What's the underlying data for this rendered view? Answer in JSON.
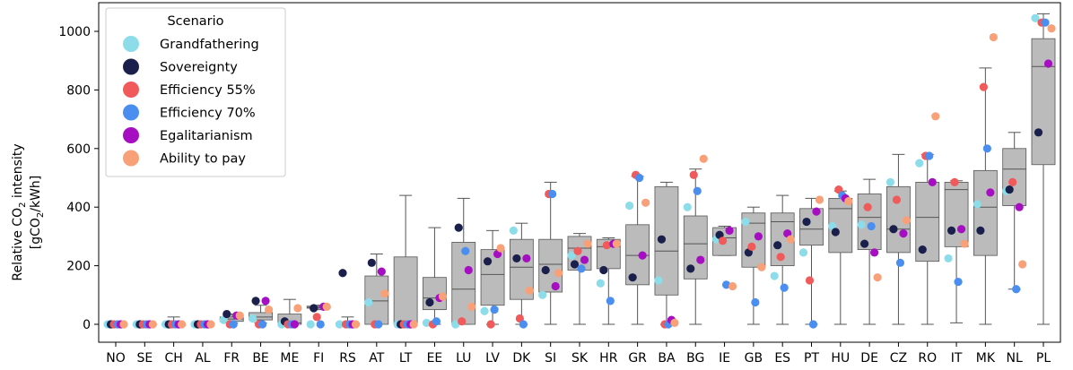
{
  "chart_data": {
    "type": "box",
    "ylabel_line1": "Relative CO",
    "ylabel_sub1": "2",
    "ylabel_line1_rest": " intensity",
    "ylabel_line2_a": "[gCO",
    "ylabel_sub2": "2",
    "ylabel_line2_b": "/kWh]",
    "ylim": [
      -25,
      1090
    ],
    "yticks": [
      0,
      200,
      400,
      600,
      800,
      1000
    ],
    "legend": {
      "title": "Scenario",
      "position": "top-left",
      "entries": [
        {
          "name": "Grandfathering",
          "color": "#8ddcea"
        },
        {
          "name": "Sovereignty",
          "color": "#1b1f4b"
        },
        {
          "name": "Efficiency 55%",
          "color": "#f15a5a"
        },
        {
          "name": "Efficiency 70%",
          "color": "#4a8ef0"
        },
        {
          "name": "Egalitarianism",
          "color": "#a50fc1"
        },
        {
          "name": "Ability to pay",
          "color": "#f8a078"
        }
      ]
    },
    "box_color": "#bbbbbb",
    "categories": [
      "NO",
      "SE",
      "CH",
      "AL",
      "FR",
      "BE",
      "ME",
      "FI",
      "RS",
      "AT",
      "LT",
      "EE",
      "LU",
      "LV",
      "DK",
      "SI",
      "SK",
      "HR",
      "GR",
      "BA",
      "BG",
      "IE",
      "GB",
      "ES",
      "PT",
      "HU",
      "DE",
      "CZ",
      "RO",
      "IT",
      "MK",
      "NL",
      "PL"
    ],
    "boxes": [
      {
        "min": 0,
        "q1": 0,
        "med": 0,
        "q3": 2,
        "max": 4
      },
      {
        "min": 0,
        "q1": 0,
        "med": 0,
        "q3": 2,
        "max": 4
      },
      {
        "min": 0,
        "q1": 0,
        "med": 0,
        "q3": 2,
        "max": 25
      },
      {
        "min": 0,
        "q1": 0,
        "med": 0,
        "q3": 2,
        "max": 10
      },
      {
        "min": 5,
        "q1": 10,
        "med": 18,
        "q3": 25,
        "max": 35
      },
      {
        "min": 5,
        "q1": 15,
        "med": 25,
        "q3": 40,
        "max": 65
      },
      {
        "min": 0,
        "q1": 0,
        "med": 5,
        "q3": 35,
        "max": 85
      },
      {
        "min": 50,
        "q1": 55,
        "med": 58,
        "q3": 62,
        "max": 65
      },
      {
        "min": 0,
        "q1": 0,
        "med": 0,
        "q3": 4,
        "max": 25
      },
      {
        "min": 0,
        "q1": 0,
        "med": 80,
        "q3": 165,
        "max": 240
      },
      {
        "min": 0,
        "q1": 0,
        "med": 0,
        "q3": 230,
        "max": 440
      },
      {
        "min": 0,
        "q1": 50,
        "med": 90,
        "q3": 160,
        "max": 330
      },
      {
        "min": 0,
        "q1": 0,
        "med": 120,
        "q3": 280,
        "max": 430
      },
      {
        "min": 0,
        "q1": 65,
        "med": 170,
        "q3": 255,
        "max": 320
      },
      {
        "min": 0,
        "q1": 85,
        "med": 195,
        "q3": 290,
        "max": 345
      },
      {
        "min": 0,
        "q1": 110,
        "med": 205,
        "q3": 290,
        "max": 485
      },
      {
        "min": 0,
        "q1": 185,
        "med": 260,
        "q3": 300,
        "max": 310
      },
      {
        "min": 0,
        "q1": 190,
        "med": 265,
        "q3": 290,
        "max": 295
      },
      {
        "min": 0,
        "q1": 135,
        "med": 235,
        "q3": 340,
        "max": 505
      },
      {
        "min": 0,
        "q1": 100,
        "med": 250,
        "q3": 470,
        "max": 485
      },
      {
        "min": 0,
        "q1": 155,
        "med": 275,
        "q3": 370,
        "max": 530
      },
      {
        "min": 235,
        "q1": 235,
        "med": 295,
        "q3": 330,
        "max": 335
      },
      {
        "min": 0,
        "q1": 195,
        "med": 345,
        "q3": 380,
        "max": 400
      },
      {
        "min": 0,
        "q1": 200,
        "med": 350,
        "q3": 380,
        "max": 440
      },
      {
        "min": 0,
        "q1": 270,
        "med": 325,
        "q3": 395,
        "max": 430
      },
      {
        "min": 0,
        "q1": 245,
        "med": 395,
        "q3": 430,
        "max": 455
      },
      {
        "min": 0,
        "q1": 255,
        "med": 365,
        "q3": 445,
        "max": 495
      },
      {
        "min": 0,
        "q1": 245,
        "med": 325,
        "q3": 470,
        "max": 580
      },
      {
        "min": 0,
        "q1": 215,
        "med": 365,
        "q3": 485,
        "max": 580
      },
      {
        "min": 5,
        "q1": 265,
        "med": 460,
        "q3": 485,
        "max": 490
      },
      {
        "min": 0,
        "q1": 235,
        "med": 400,
        "q3": 525,
        "max": 875
      },
      {
        "min": 120,
        "q1": 405,
        "med": 530,
        "q3": 600,
        "max": 655
      },
      {
        "min": 0,
        "q1": 545,
        "med": 880,
        "q3": 975,
        "max": 1060
      }
    ],
    "scenarios": {
      "Grandfathering": [
        0,
        0,
        0,
        0,
        15,
        20,
        0,
        0,
        0,
        75,
        0,
        5,
        0,
        45,
        320,
        100,
        235,
        140,
        405,
        150,
        400,
        290,
        350,
        165,
        245,
        335,
        340,
        485,
        550,
        225,
        410,
        455,
        1045
      ],
      "Sovereignty": [
        0,
        0,
        0,
        0,
        35,
        80,
        10,
        55,
        175,
        210,
        0,
        75,
        330,
        215,
        225,
        185,
        205,
        185,
        160,
        290,
        190,
        305,
        245,
        270,
        350,
        315,
        275,
        325,
        255,
        320,
        320,
        460,
        655
      ],
      "Efficiency 55%": [
        0,
        0,
        0,
        0,
        0,
        0,
        0,
        25,
        0,
        0,
        0,
        0,
        10,
        0,
        20,
        445,
        250,
        270,
        510,
        0,
        510,
        285,
        265,
        230,
        150,
        460,
        400,
        425,
        575,
        485,
        810,
        485,
        1030
      ],
      "Efficiency 70%": [
        0,
        0,
        0,
        0,
        0,
        0,
        0,
        0,
        0,
        0,
        0,
        10,
        250,
        50,
        0,
        445,
        190,
        80,
        500,
        0,
        455,
        135,
        75,
        125,
        0,
        440,
        335,
        210,
        575,
        145,
        600,
        120,
        1030
      ],
      "Egalitarianism": [
        0,
        0,
        0,
        0,
        30,
        80,
        0,
        60,
        0,
        180,
        0,
        90,
        185,
        240,
        225,
        130,
        220,
        275,
        235,
        15,
        220,
        320,
        300,
        310,
        385,
        430,
        245,
        310,
        485,
        325,
        450,
        400,
        890
      ],
      "Ability to pay": [
        0,
        0,
        0,
        0,
        30,
        50,
        55,
        60,
        0,
        105,
        0,
        95,
        60,
        260,
        115,
        175,
        275,
        275,
        415,
        5,
        565,
        130,
        195,
        290,
        425,
        420,
        160,
        355,
        710,
        275,
        980,
        205,
        1010
      ]
    }
  }
}
